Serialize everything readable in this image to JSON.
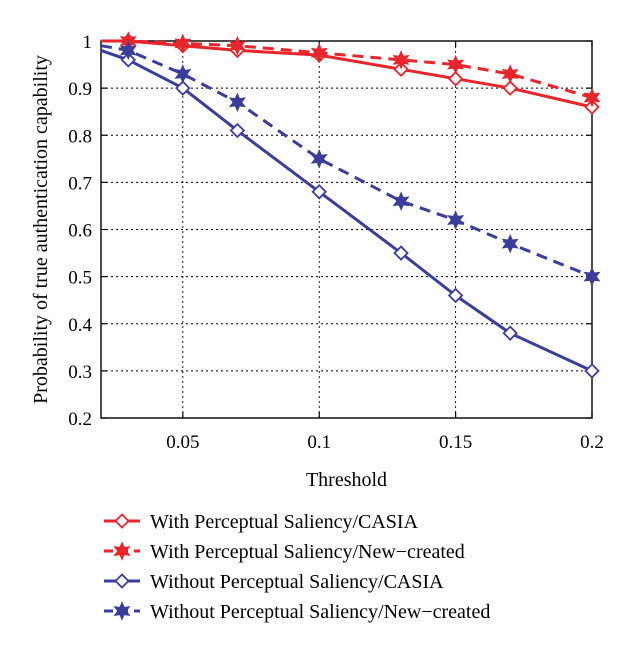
{
  "chart_data": {
    "type": "line",
    "xlabel": "Threshold",
    "ylabel": "Probability of true authentication capability",
    "xlim": [
      0.02,
      0.2
    ],
    "ylim": [
      0.2,
      1.0
    ],
    "xticks": [
      0.05,
      0.1,
      0.15,
      0.2
    ],
    "xtick_labels": [
      "0.05",
      "0.1",
      "0.15",
      "0.2"
    ],
    "yticks": [
      0.2,
      0.3,
      0.4,
      0.5,
      0.6,
      0.7,
      0.8,
      0.9,
      1.0
    ],
    "ytick_labels": [
      "0.2",
      "0.3",
      "0.4",
      "0.5",
      "0.6",
      "0.7",
      "0.8",
      "0.9",
      "1"
    ],
    "grid": true,
    "legend_position": "bottom-center, below the plot",
    "series": [
      {
        "name": "With Perceptual Saliency/CASIA",
        "color": "#e8252a",
        "line": "solid",
        "marker": "diamond",
        "x": [
          0.02,
          0.03,
          0.05,
          0.07,
          0.1,
          0.13,
          0.15,
          0.17,
          0.2
        ],
        "y": [
          1.0,
          1.0,
          0.99,
          0.98,
          0.97,
          0.94,
          0.92,
          0.9,
          0.86
        ]
      },
      {
        "name": "With Perceptual Saliency/New−created",
        "color": "#e8252a",
        "line": "dashed",
        "marker": "star",
        "x": [
          0.02,
          0.03,
          0.05,
          0.07,
          0.1,
          0.13,
          0.15,
          0.17,
          0.2
        ],
        "y": [
          1.0,
          1.0,
          0.995,
          0.99,
          0.975,
          0.96,
          0.95,
          0.93,
          0.88
        ]
      },
      {
        "name": "Without Perceptual Saliency/CASIA",
        "color": "#3a3e9a",
        "line": "solid",
        "marker": "diamond",
        "x": [
          0.02,
          0.03,
          0.05,
          0.07,
          0.1,
          0.13,
          0.15,
          0.17,
          0.2
        ],
        "y": [
          0.98,
          0.96,
          0.9,
          0.81,
          0.68,
          0.55,
          0.46,
          0.38,
          0.3
        ]
      },
      {
        "name": "Without Perceptual Saliency/New−created",
        "color": "#3a3e9a",
        "line": "dashed",
        "marker": "star",
        "x": [
          0.02,
          0.03,
          0.05,
          0.07,
          0.1,
          0.13,
          0.15,
          0.17,
          0.2
        ],
        "y": [
          0.99,
          0.98,
          0.93,
          0.87,
          0.75,
          0.66,
          0.62,
          0.57,
          0.5
        ]
      }
    ]
  }
}
